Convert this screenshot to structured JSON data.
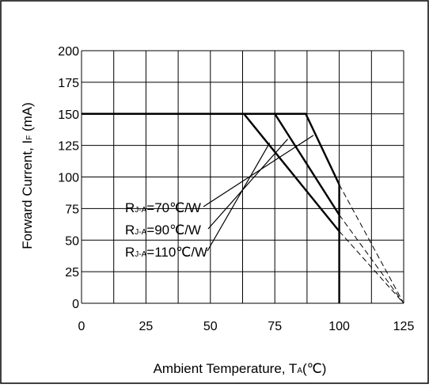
{
  "chart_data": {
    "type": "line",
    "xlabel": {
      "main": "Ambient Temperature, T",
      "sub": "A",
      "unit": "(℃)"
    },
    "ylabel": {
      "main": "Forward Current, I",
      "sub": "F",
      "unit": " (mA)"
    },
    "xlim": [
      0,
      125
    ],
    "ylim": [
      0,
      200
    ],
    "xticks": [
      0,
      25,
      50,
      75,
      100,
      125
    ],
    "yticks": [
      0,
      25,
      50,
      75,
      100,
      125,
      150,
      175,
      200
    ],
    "grid": true,
    "series": [
      {
        "name": "RJ-A=70℃/W",
        "label": {
          "main": "R",
          "sub": "J-A",
          "rest": "=70℃/W"
        },
        "points": [
          [
            0,
            150
          ],
          [
            87,
            150
          ],
          [
            100,
            94
          ]
        ],
        "extrapolated": [
          [
            100,
            94
          ],
          [
            125,
            0
          ]
        ]
      },
      {
        "name": "RJ-A=90℃/W",
        "label": {
          "main": "R",
          "sub": "J-A",
          "rest": "=90℃/W"
        },
        "points": [
          [
            0,
            150
          ],
          [
            75,
            150
          ],
          [
            100,
            70
          ]
        ],
        "extrapolated": [
          [
            100,
            70
          ],
          [
            125,
            0
          ]
        ]
      },
      {
        "name": "RJ-A=110℃/W",
        "label": {
          "main": "R",
          "sub": "J-A",
          "rest": "=110℃/W"
        },
        "points": [
          [
            0,
            150
          ],
          [
            63,
            150
          ],
          [
            100,
            57
          ]
        ],
        "extrapolated": [
          [
            100,
            57
          ],
          [
            125,
            0
          ]
        ]
      }
    ],
    "vertical_limit": {
      "x": 100,
      "y_from": 0,
      "y_to": 94
    }
  }
}
